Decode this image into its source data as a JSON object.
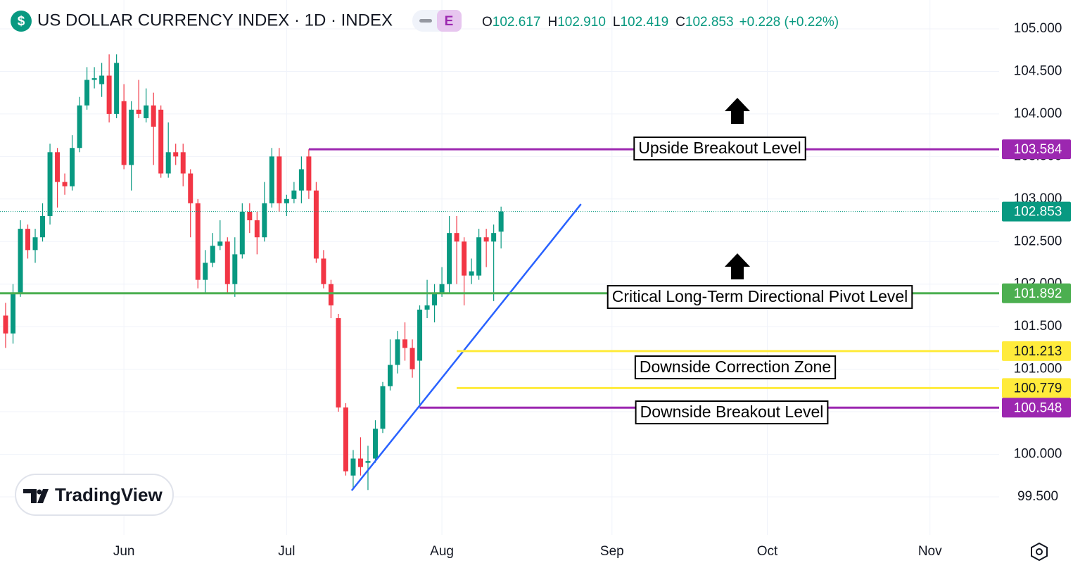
{
  "chart_data": {
    "type": "candlestick",
    "title": "US DOLLAR CURRENCY INDEX · 1D · INDEX",
    "symbol_icon": "$",
    "badge": "E",
    "ohlc_legend": [
      {
        "label": "O",
        "value": "102.617"
      },
      {
        "label": "H",
        "value": "102.910"
      },
      {
        "label": "L",
        "value": "102.419"
      },
      {
        "label": "C",
        "value": "102.853"
      }
    ],
    "change": "+0.228 (+0.22%)",
    "watermark": "TradingView",
    "up_color": "#089981",
    "down_color": "#f23645",
    "open": [
      101.63,
      101.42,
      101.9,
      102.65,
      102.4,
      102.55,
      102.8,
      103.55,
      103.2,
      103.15,
      103.6,
      104.1,
      104.4,
      104.35,
      104.45,
      104.0,
      104.15,
      103.4,
      104.05,
      103.95,
      104.1,
      104.05,
      103.3,
      103.55,
      103.55,
      103.3,
      102.95,
      102.05,
      102.25,
      102.45,
      102.5,
      102.0,
      102.35,
      102.85,
      102.75,
      102.55,
      102.95,
      103.5,
      102.95,
      103.0,
      103.1,
      103.5,
      103.1,
      102.3,
      102.0,
      101.6,
      100.55,
      99.75,
      99.95,
      99.9,
      99.95,
      100.3,
      100.8,
      101.05,
      101.35,
      101.25,
      101.1,
      101.7,
      101.75,
      101.9,
      102.0,
      102.6,
      102.5,
      102.1,
      102.1,
      102.55,
      102.5,
      102.617
    ],
    "high": [
      101.78,
      102.0,
      102.75,
      102.7,
      102.65,
      102.95,
      103.65,
      103.6,
      103.3,
      103.75,
      104.2,
      104.55,
      104.55,
      104.6,
      104.7,
      104.7,
      104.35,
      104.15,
      104.4,
      104.3,
      104.25,
      104.1,
      103.9,
      103.65,
      103.65,
      103.35,
      103.0,
      102.4,
      102.6,
      102.75,
      102.55,
      102.55,
      102.95,
      102.95,
      102.85,
      103.2,
      103.6,
      103.6,
      103.05,
      103.2,
      103.5,
      103.584,
      103.2,
      102.4,
      102.05,
      101.65,
      100.6,
      100.05,
      100.2,
      100.1,
      100.4,
      100.85,
      101.35,
      101.45,
      101.55,
      101.35,
      101.75,
      102.05,
      102.0,
      102.2,
      102.8,
      102.8,
      102.55,
      102.3,
      102.65,
      102.65,
      102.7,
      102.91
    ],
    "low": [
      101.25,
      101.3,
      101.85,
      102.3,
      102.25,
      102.5,
      102.7,
      102.9,
      103.05,
      103.1,
      103.55,
      104.05,
      104.3,
      104.2,
      103.9,
      103.95,
      103.35,
      103.1,
      103.95,
      103.9,
      103.4,
      103.25,
      103.25,
      103.4,
      103.15,
      102.55,
      101.95,
      101.9,
      102.2,
      102.4,
      101.9,
      101.85,
      102.3,
      102.6,
      102.35,
      102.5,
      102.9,
      102.85,
      102.8,
      102.95,
      102.95,
      103.0,
      102.25,
      101.95,
      101.6,
      100.5,
      99.75,
      99.6,
      99.75,
      99.58,
      99.9,
      100.25,
      100.75,
      100.95,
      101.1,
      100.9,
      100.548,
      101.6,
      101.55,
      101.85,
      101.9,
      102.0,
      101.75,
      102.0,
      102.05,
      102.2,
      101.8,
      102.419
    ],
    "close": [
      101.42,
      101.9,
      102.65,
      102.4,
      102.55,
      102.8,
      103.55,
      103.2,
      103.15,
      103.6,
      104.1,
      104.4,
      104.42,
      104.45,
      104.0,
      104.6,
      103.4,
      104.05,
      104.0,
      104.1,
      103.85,
      103.3,
      103.55,
      103.5,
      103.3,
      102.95,
      102.05,
      102.25,
      102.45,
      102.5,
      102.0,
      102.35,
      102.85,
      102.75,
      102.55,
      102.95,
      103.5,
      102.95,
      103.0,
      103.1,
      103.35,
      103.1,
      102.3,
      102.0,
      101.75,
      100.55,
      99.8,
      99.95,
      99.85,
      99.92,
      100.3,
      100.8,
      101.05,
      101.35,
      101.25,
      101.0,
      101.7,
      101.75,
      101.9,
      102.0,
      102.6,
      102.5,
      102.1,
      102.15,
      102.55,
      102.5,
      102.6,
      102.853
    ],
    "xlim": [
      -0.76,
      134.35
    ],
    "xticks": [
      {
        "value": 16,
        "label": "Jun"
      },
      {
        "value": 38,
        "label": "Jul"
      },
      {
        "value": 59,
        "label": "Aug"
      },
      {
        "value": 82,
        "label": "Sep"
      },
      {
        "value": 103,
        "label": "Oct"
      },
      {
        "value": 125,
        "label": "Nov"
      }
    ],
    "ylim": [
      99.053,
      105.339
    ],
    "yticks": [
      {
        "value": 99.5,
        "label": "99.500"
      },
      {
        "value": 100,
        "label": "100.000"
      },
      {
        "value": 100.5,
        "label": "100.500"
      },
      {
        "value": 101,
        "label": "101.000"
      },
      {
        "value": 101.5,
        "label": "101.500"
      },
      {
        "value": 102,
        "label": "102.000"
      },
      {
        "value": 102.5,
        "label": "102.500"
      },
      {
        "value": 103,
        "label": "103.000"
      },
      {
        "value": 103.5,
        "label": "103.500"
      },
      {
        "value": 104,
        "label": "104.000"
      },
      {
        "value": 104.5,
        "label": "104.500"
      },
      {
        "value": 105,
        "label": "105.000"
      }
    ],
    "grid": true,
    "last_price": {
      "value": 102.853,
      "label": "102.853",
      "color": "#089981"
    },
    "levels": [
      {
        "name": "Upside Breakout Level",
        "values": [
          103.584
        ],
        "value_labels": [
          "103.584"
        ],
        "color": "#9c27b0"
      },
      {
        "name": "Critical Long-Term Directional Pivot Level",
        "values": [
          101.892
        ],
        "value_labels": [
          "101.892"
        ],
        "color": "#4caf50"
      },
      {
        "name": "Downside Correction Zone",
        "values": [
          101.213,
          100.779
        ],
        "value_labels": [
          "101.213",
          "100.779"
        ],
        "color": "#ffeb3b"
      },
      {
        "name": "Downside Breakout Level",
        "values": [
          100.548
        ],
        "value_labels": [
          "100.548"
        ],
        "color": "#9c27b0"
      }
    ],
    "trendline": {
      "x": [
        46.8,
        77.8
      ],
      "y": [
        99.574,
        102.94
      ],
      "color": "#2962ff"
    }
  }
}
